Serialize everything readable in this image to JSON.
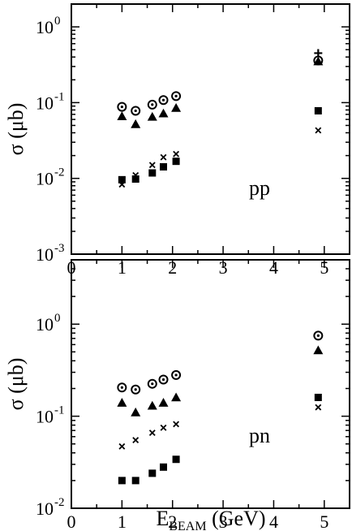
{
  "chart_data": [
    {
      "type": "scatter",
      "label": "pp",
      "xlabel_main": "E",
      "xlabel_sub": "BEAM",
      "xlabel_unit": " (GeV)",
      "ylabel": "σ (μb)",
      "xlim": [
        0,
        5.5
      ],
      "ylim": [
        0.001,
        2
      ],
      "yscale": "log",
      "x_ticks": [
        "0",
        "1",
        "2",
        "3",
        "4",
        "5"
      ],
      "y_ticks": [
        {
          "value": 1,
          "base": "10",
          "exp": "0"
        },
        {
          "value": 0.1,
          "base": "10",
          "exp": "-1"
        },
        {
          "value": 0.01,
          "base": "10",
          "exp": "-2"
        },
        {
          "value": 0.001,
          "base": "10",
          "exp": "-3"
        }
      ],
      "series": [
        {
          "marker": "circle-dot",
          "x": [
            1.0,
            1.27,
            1.6,
            1.82,
            2.07,
            4.88
          ],
          "y": [
            0.088,
            0.078,
            0.094,
            0.108,
            0.122,
            0.36
          ]
        },
        {
          "marker": "triangle",
          "x": [
            1.0,
            1.27,
            1.6,
            1.82,
            2.07,
            4.88
          ],
          "y": [
            0.066,
            0.052,
            0.065,
            0.072,
            0.085,
            0.35
          ]
        },
        {
          "marker": "square",
          "x": [
            1.0,
            1.27,
            1.6,
            1.82,
            2.07,
            4.88
          ],
          "y": [
            0.0096,
            0.0098,
            0.0118,
            0.0142,
            0.0168,
            0.078
          ]
        },
        {
          "marker": "cross",
          "x": [
            1.0,
            1.27,
            1.6,
            1.82,
            2.07,
            4.88
          ],
          "y": [
            0.0083,
            0.011,
            0.015,
            0.019,
            0.021,
            0.043
          ]
        },
        {
          "marker": "plus",
          "x": [
            4.88
          ],
          "y": [
            0.45
          ]
        }
      ]
    },
    {
      "type": "scatter",
      "label": "pn",
      "xlabel_main": "E",
      "xlabel_sub": "BEAM",
      "xlabel_unit": " (GeV)",
      "ylabel": "σ (μb)",
      "xlim": [
        0,
        5.5
      ],
      "ylim": [
        0.01,
        5
      ],
      "yscale": "log",
      "x_ticks": [
        "0",
        "1",
        "2",
        "3",
        "4",
        "5"
      ],
      "y_ticks": [
        {
          "value": 1,
          "base": "10",
          "exp": "0"
        },
        {
          "value": 0.1,
          "base": "10",
          "exp": "-1"
        },
        {
          "value": 0.01,
          "base": "10",
          "exp": "-2"
        }
      ],
      "series": [
        {
          "marker": "circle-dot",
          "x": [
            1.0,
            1.27,
            1.6,
            1.82,
            2.07,
            4.88
          ],
          "y": [
            0.205,
            0.195,
            0.225,
            0.25,
            0.28,
            0.75
          ]
        },
        {
          "marker": "triangle",
          "x": [
            1.0,
            1.27,
            1.6,
            1.82,
            2.07,
            4.88
          ],
          "y": [
            0.14,
            0.11,
            0.13,
            0.14,
            0.16,
            0.52
          ]
        },
        {
          "marker": "cross",
          "x": [
            1.0,
            1.27,
            1.6,
            1.82,
            2.07,
            4.88
          ],
          "y": [
            0.047,
            0.055,
            0.066,
            0.075,
            0.082,
            0.125
          ]
        },
        {
          "marker": "square",
          "x": [
            1.0,
            1.27,
            1.6,
            1.82,
            2.07,
            4.88
          ],
          "y": [
            0.02,
            0.02,
            0.024,
            0.028,
            0.034,
            0.16
          ]
        }
      ]
    }
  ]
}
